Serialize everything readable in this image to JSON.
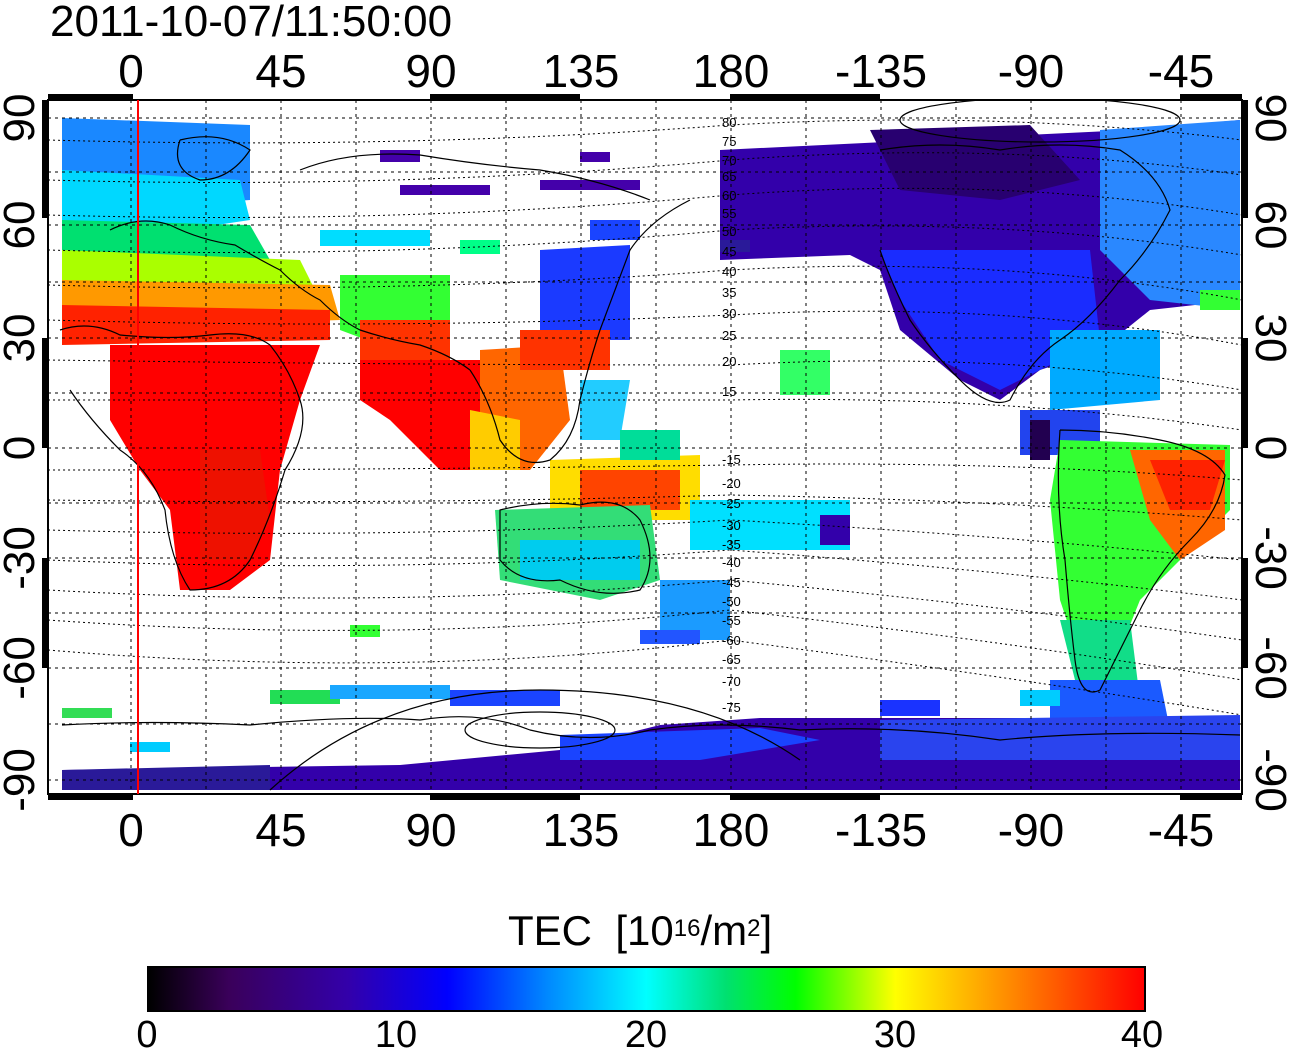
{
  "timestamp": "2011-10-07/11:50:00",
  "map": {
    "x_ticks": [
      "0",
      "45",
      "90",
      "135",
      "180",
      "-135",
      "-90",
      "-45"
    ],
    "y_ticks": [
      "90",
      "60",
      "30",
      "0",
      "-30",
      "-60",
      "-90"
    ],
    "contour_labels": [
      "80",
      "75",
      "70",
      "65",
      "60",
      "55",
      "50",
      "45",
      "40",
      "35",
      "30",
      "25",
      "20",
      "15",
      "-15",
      "-20",
      "-25",
      "-30",
      "-35",
      "-40",
      "-45",
      "-50",
      "-55",
      "-60",
      "-65",
      "-70",
      "-75"
    ],
    "terminator_longitude": 2
  },
  "colorbar": {
    "title": "TEC",
    "unit_base": "[10",
    "unit_exp": "16",
    "unit_mid": "/m",
    "unit_exp2": "2",
    "unit_end": "]",
    "labels": [
      "0",
      "10",
      "20",
      "30",
      "40"
    ],
    "min": 0,
    "max": 40,
    "colors": [
      "#000000",
      "#3300aa",
      "#0000ff",
      "#00ffff",
      "#00ff00",
      "#ffff00",
      "#ff0000"
    ]
  }
}
